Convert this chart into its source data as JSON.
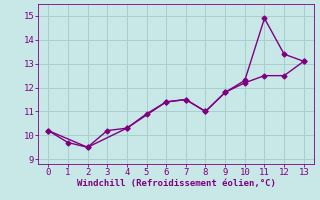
{
  "line1_x": [
    0,
    1,
    2,
    3,
    4,
    5,
    6,
    7,
    8,
    9,
    10,
    11,
    12,
    13
  ],
  "line1_y": [
    10.2,
    9.7,
    9.5,
    10.2,
    10.3,
    10.9,
    11.4,
    11.5,
    11.0,
    11.8,
    12.3,
    14.9,
    13.4,
    13.1
  ],
  "line2_x": [
    0,
    2,
    4,
    6,
    7,
    8,
    9,
    10,
    11,
    12,
    13
  ],
  "line2_y": [
    10.2,
    9.5,
    10.3,
    11.4,
    11.5,
    11.0,
    11.8,
    12.2,
    12.5,
    12.5,
    13.1
  ],
  "line_color": "#800080",
  "bg_color": "#c8e8e8",
  "grid_color": "#a8cece",
  "xlabel": "Windchill (Refroidissement éolien,°C)",
  "xlim": [
    -0.5,
    13.5
  ],
  "ylim": [
    8.8,
    15.5
  ],
  "xticks": [
    0,
    1,
    2,
    3,
    4,
    5,
    6,
    7,
    8,
    9,
    10,
    11,
    12,
    13
  ],
  "yticks": [
    9,
    10,
    11,
    12,
    13,
    14,
    15
  ],
  "xlabel_fontsize": 6.5,
  "tick_fontsize": 6.5,
  "marker": "D",
  "marker_size": 2.5,
  "linewidth": 1.0
}
